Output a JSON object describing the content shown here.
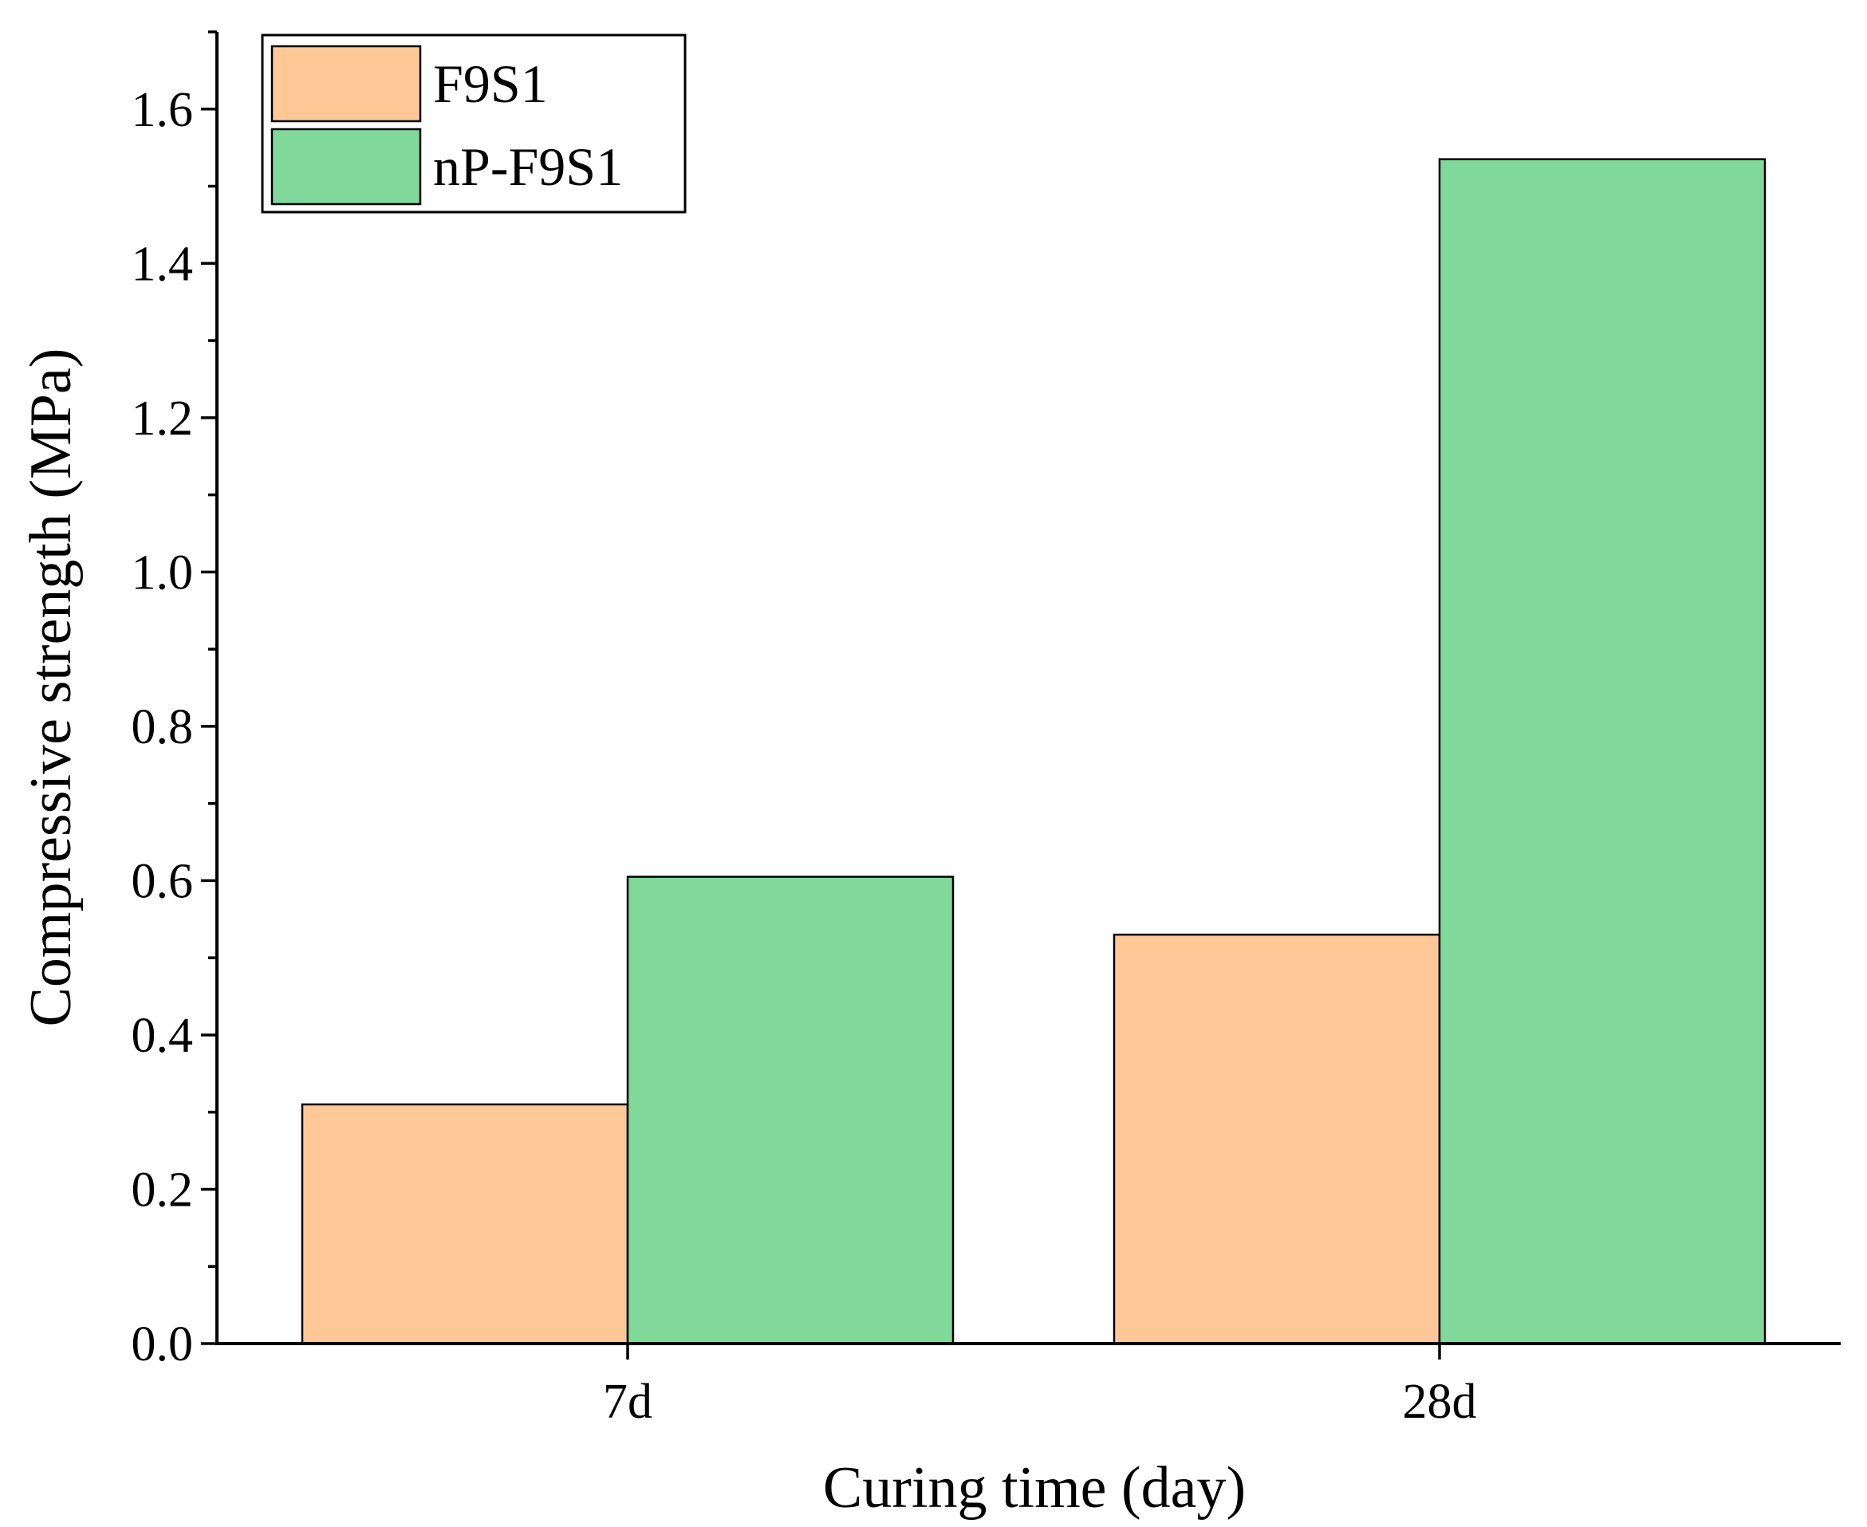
{
  "chart_data": {
    "type": "bar",
    "title": "",
    "xlabel": "Curing time (day)",
    "ylabel": "Compressive strength (MPa)",
    "categories": [
      "7d",
      "28d"
    ],
    "series": [
      {
        "name": "F9S1",
        "color": "#ffc896",
        "values": [
          0.31,
          0.53
        ]
      },
      {
        "name": "nP-F9S1",
        "color": "#80d89a",
        "values": [
          0.605,
          1.535
        ]
      }
    ],
    "ylim": [
      0,
      1.7
    ],
    "yticks": [
      "0.0",
      "0.2",
      "0.4",
      "0.6",
      "0.8",
      "1.0",
      "1.2",
      "1.4",
      "1.6"
    ],
    "ytick_values": [
      0,
      0.2,
      0.4,
      0.6,
      0.8,
      1.0,
      1.2,
      1.4,
      1.6
    ],
    "y_minor_step": 0.1,
    "grid": false,
    "legend_position": "top-left"
  }
}
